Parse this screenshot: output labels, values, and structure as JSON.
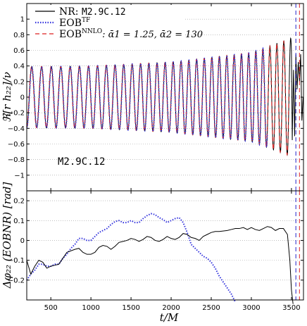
{
  "chart_data": [
    {
      "type": "line",
      "ylabel": "ℜ[r h₂₂]/ν",
      "ylim": [
        -1.2,
        1.2
      ],
      "xlim": [
        200,
        3650
      ],
      "yticks": [
        "1",
        "0.8",
        "0.6",
        "0.4",
        "0.2",
        "0",
        "−0.2",
        "−0.4",
        "−0.6",
        "−0.8",
        "−1"
      ],
      "grid": "dotted horizontal",
      "legend_position": "top-left",
      "annotation": "M2.9C.12",
      "series": [
        {
          "name": "NR: M2.9C.12",
          "color": "#000000",
          "style": "solid",
          "amplitude_envelope": {
            "t": [
              200,
              1000,
              2000,
              3000,
              3400,
              3500
            ],
            "amp": [
              0.39,
              0.4,
              0.45,
              0.57,
              0.72,
              0.76
            ]
          },
          "cycle_period_M": [
            125,
            85
          ]
        },
        {
          "name": "EOB^TF",
          "color": "#3333dd",
          "style": "dotted"
        },
        {
          "name": "EOB^NNLO: ᾱ1 = 1.25, ᾱ2 = 130",
          "color": "#dd2222",
          "style": "dashed"
        }
      ],
      "vertical_lines": [
        {
          "t": 3555,
          "color": "#2222cc",
          "style": "dashed"
        },
        {
          "t": 3600,
          "color": "#dd2222",
          "style": "dashed"
        }
      ],
      "legend": [
        {
          "prefix": "NR: ",
          "mono": "M2.9C.12",
          "sup": "",
          "tail": "",
          "color": "#000000",
          "style": "solid"
        },
        {
          "prefix": "EOB",
          "mono": "",
          "sup": "TF",
          "tail": "",
          "color": "#3333dd",
          "style": "dotted"
        },
        {
          "prefix": "EOB",
          "mono": "",
          "sup": "NNLO",
          "tail": ": ᾱ1 = 1.25, ᾱ2 = 130",
          "color": "#dd2222",
          "style": "dashed"
        }
      ]
    },
    {
      "type": "line",
      "xlabel": "t/M",
      "ylabel": "Δφ₂₂ (EOBNR) [rad]",
      "ylim": [
        -0.3,
        0.25
      ],
      "xlim": [
        200,
        3650
      ],
      "xticks": [
        "500",
        "1000",
        "1500",
        "2000",
        "2500",
        "3000",
        "3500"
      ],
      "yticks": [
        "0.2",
        "0.1",
        "0",
        "−0.1",
        "−0.2"
      ],
      "grid": "dotted horizontal",
      "series": [
        {
          "name": "NR: M2.9C.12",
          "color": "#000000",
          "style": "solid",
          "x": [
            200,
            250,
            300,
            350,
            400,
            450,
            500,
            550,
            600,
            650,
            700,
            800,
            850,
            900,
            950,
            1000,
            1050,
            1100,
            1150,
            1200,
            1250,
            1300,
            1350,
            1400,
            1450,
            1500,
            1550,
            1600,
            1650,
            1700,
            1750,
            1800,
            1850,
            1900,
            1950,
            2000,
            2050,
            2100,
            2150,
            2200,
            2250,
            2300,
            2350,
            2400,
            2450,
            2500,
            2550,
            2600,
            2700,
            2750,
            2800,
            2850,
            2900,
            2950,
            3000,
            3050,
            3100,
            3150,
            3200,
            3250,
            3300,
            3350,
            3400,
            3450,
            3480,
            3500,
            3520
          ],
          "y": [
            -0.1,
            -0.17,
            -0.13,
            -0.1,
            -0.11,
            -0.14,
            -0.13,
            -0.125,
            -0.12,
            -0.09,
            -0.06,
            -0.045,
            -0.04,
            -0.06,
            -0.07,
            -0.07,
            -0.06,
            -0.035,
            -0.025,
            -0.03,
            -0.045,
            -0.03,
            -0.01,
            -0.005,
            0.0,
            0.01,
            0.005,
            -0.005,
            0.005,
            0.02,
            0.015,
            0.0,
            -0.005,
            0.005,
            0.02,
            0.01,
            0.005,
            0.015,
            0.035,
            0.03,
            0.015,
            0.01,
            0.0,
            0.02,
            0.03,
            0.04,
            0.045,
            0.045,
            0.05,
            0.055,
            0.06,
            0.06,
            0.065,
            0.055,
            0.065,
            0.055,
            0.05,
            0.06,
            0.07,
            0.065,
            0.05,
            0.06,
            0.06,
            0.03,
            -0.1,
            -0.25,
            -0.32
          ]
        },
        {
          "name": "EOB^TF",
          "color": "#3333dd",
          "style": "dotted",
          "x": [
            200,
            250,
            300,
            350,
            400,
            450,
            500,
            550,
            600,
            650,
            700,
            750,
            800,
            850,
            900,
            950,
            1000,
            1050,
            1100,
            1150,
            1200,
            1250,
            1300,
            1350,
            1400,
            1450,
            1500,
            1550,
            1600,
            1650,
            1700,
            1750,
            1800,
            1850,
            1900,
            1950,
            2000,
            2050,
            2100,
            2150,
            2200,
            2250,
            2300,
            2350,
            2400,
            2450,
            2500,
            2550,
            2600,
            2650,
            2700,
            2750,
            2800
          ],
          "y": [
            -0.2,
            -0.17,
            -0.15,
            -0.12,
            -0.12,
            -0.13,
            -0.13,
            -0.12,
            -0.12,
            -0.09,
            -0.07,
            -0.04,
            -0.02,
            0.01,
            0.01,
            0.0,
            0.0,
            0.02,
            0.04,
            0.05,
            0.06,
            0.08,
            0.095,
            0.1,
            0.09,
            0.09,
            0.1,
            0.09,
            0.09,
            0.11,
            0.125,
            0.135,
            0.13,
            0.115,
            0.105,
            0.09,
            0.1,
            0.11,
            0.115,
            0.09,
            0.04,
            -0.02,
            -0.04,
            -0.06,
            -0.08,
            -0.09,
            -0.11,
            -0.14,
            -0.18,
            -0.21,
            -0.24,
            -0.27,
            -0.31
          ]
        }
      ],
      "vertical_lines": [
        {
          "t": 3555,
          "color": "#2222cc",
          "style": "dashed"
        },
        {
          "t": 3600,
          "color": "#dd2222",
          "style": "dashed"
        }
      ]
    }
  ]
}
